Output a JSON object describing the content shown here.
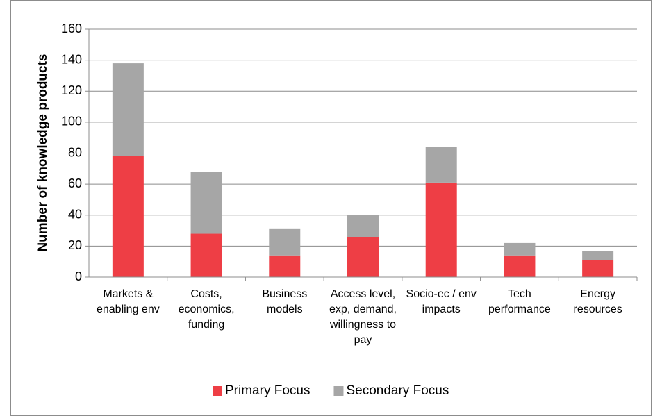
{
  "chart_data": {
    "type": "stacked_bar",
    "y_label": "Number of knowledge products",
    "categories": [
      [
        "Markets &",
        "enabling env"
      ],
      [
        "Costs,",
        "economics,",
        "funding"
      ],
      [
        "Business",
        "models"
      ],
      [
        "Access level,",
        "exp, demand,",
        "willingness to",
        "pay"
      ],
      [
        "Socio-ec / env",
        "impacts"
      ],
      [
        "Tech",
        "performance"
      ],
      [
        "Energy",
        "resources"
      ]
    ],
    "series": [
      {
        "name": "Primary Focus",
        "color": "#ee3e45",
        "values": [
          78,
          28,
          14,
          26,
          61,
          14,
          11
        ]
      },
      {
        "name": "Secondary Focus",
        "color": "#a6a6a6",
        "values": [
          60,
          40,
          17,
          14,
          23,
          8,
          6
        ]
      }
    ],
    "ylim": [
      0,
      160
    ],
    "yticks": [
      0,
      20,
      40,
      60,
      80,
      100,
      120,
      140,
      160
    ],
    "grid": true,
    "legend": "bottom"
  }
}
